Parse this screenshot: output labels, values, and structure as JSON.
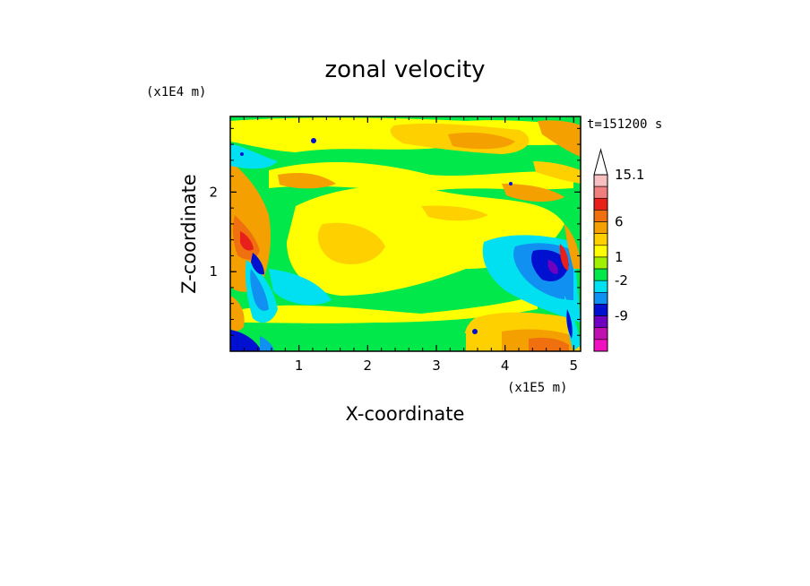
{
  "chart_data": {
    "type": "heatmap",
    "title": "zonal velocity",
    "xlabel": "X-coordinate",
    "ylabel": "Z-coordinate",
    "x_scale_label": "(x1E5 m)",
    "y_scale_label": "(x1E4 m)",
    "time_label": "t=151200 s",
    "xlim": [
      0,
      5.1
    ],
    "ylim": [
      0,
      2.95
    ],
    "x_ticks": [
      "1",
      "2",
      "3",
      "4",
      "5"
    ],
    "x_tick_values": [
      1,
      2,
      3,
      4,
      5
    ],
    "y_ticks": [
      "1",
      "2"
    ],
    "y_tick_values": [
      1,
      2
    ],
    "colorbar": {
      "labels": [
        "15.1",
        "6",
        "1",
        "-2",
        "-9"
      ],
      "label_level": [
        15.1,
        6,
        1,
        -2,
        -9
      ],
      "colors": [
        "#ffffff",
        "#f7c0c0",
        "#f08080",
        "#e8201a",
        "#f07010",
        "#f4a000",
        "#ffd000",
        "#ffff00",
        "#a0f000",
        "#00e84a",
        "#00e0f0",
        "#1090f0",
        "#0010d0",
        "#7000c0",
        "#c010b0",
        "#f010c0"
      ]
    },
    "field_description": "mostly yellow and green bands (near 0 to 1 m/s) with orange/red patches near left boundary and bottom-right, blue/dark blue cores (-2 to -9 m/s) near x=0.3 and x=4.5-5 at low levels"
  }
}
